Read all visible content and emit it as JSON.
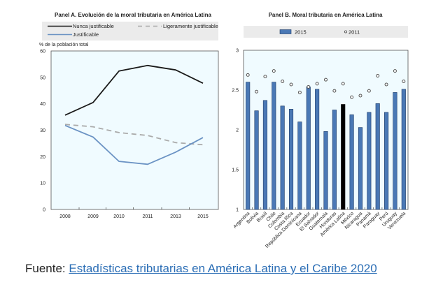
{
  "chart_data": [
    {
      "type": "line",
      "title": "Panel A. Evolución de la moral tributaria en América Latina",
      "ylabel": "% de la población total",
      "xlabel": "",
      "x": [
        "2008",
        "2009",
        "2010",
        "2011",
        "2013",
        "2015"
      ],
      "ylim": [
        0,
        60
      ],
      "yticks": [
        "0",
        "10",
        "20",
        "30",
        "40",
        "50",
        "60"
      ],
      "legend_position": "top",
      "grid": false,
      "series": [
        {
          "name": "Nunca justificable",
          "color": "#1a1a1a",
          "style": "solid",
          "values": [
            35.7,
            40.5,
            52.4,
            54.5,
            52.8,
            47.8
          ]
        },
        {
          "name": "Ligeramente justificable",
          "color": "#aaaaaa",
          "style": "dashed",
          "values": [
            32.2,
            31.3,
            29.1,
            28.0,
            25.3,
            24.5
          ]
        },
        {
          "name": "Justificable",
          "color": "#6b93c4",
          "style": "solid",
          "values": [
            31.8,
            27.4,
            18.2,
            17.1,
            21.7,
            27.2
          ]
        }
      ]
    },
    {
      "type": "bar",
      "title": "Panel B. Moral tributaria en América Latina",
      "xlabel": "",
      "ylabel": "",
      "ylim": [
        1,
        3
      ],
      "yticks": [
        "1",
        "1.5",
        "2",
        "2.5",
        "3"
      ],
      "legend_position": "top",
      "grid": false,
      "categories": [
        "Argentina",
        "Bolivia",
        "Brasil",
        "Chile",
        "Colombia",
        "Costa Rica",
        "República Dominicana",
        "Ecuador",
        "El Salvador",
        "Guatemala",
        "Honduras",
        "América Latina",
        "México",
        "Nicaragua",
        "Panamá",
        "Paraguay",
        "Perú",
        "Uruguay",
        "Venezuela"
      ],
      "highlight": "América Latina",
      "series": [
        {
          "name": "2015",
          "marker": "bar",
          "color": "#4a78b5",
          "highlight_color": "#000000",
          "values": [
            2.6,
            2.24,
            2.37,
            2.6,
            2.3,
            2.26,
            2.1,
            2.54,
            2.51,
            1.98,
            2.25,
            2.32,
            2.19,
            2.03,
            2.22,
            2.33,
            2.22,
            2.47,
            2.51
          ]
        },
        {
          "name": "2011",
          "marker": "diamond",
          "values": [
            2.69,
            2.48,
            2.67,
            2.74,
            2.61,
            2.57,
            2.47,
            2.54,
            2.58,
            2.63,
            2.49,
            2.58,
            2.41,
            2.43,
            2.49,
            2.68,
            2.57,
            2.74,
            2.61
          ]
        }
      ]
    }
  ],
  "footer": {
    "prefix": "Fuente: ",
    "link_text": "Estadísticas tributarias en América Latina y el Caribe 2020"
  }
}
